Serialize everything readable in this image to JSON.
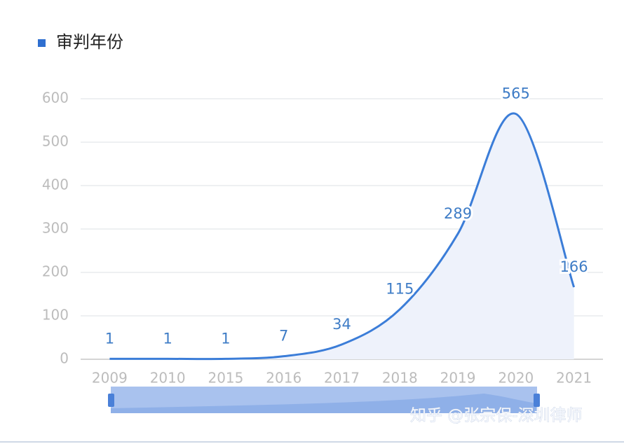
{
  "chart_data": {
    "type": "line",
    "title": "审判年份",
    "categories": [
      "2009",
      "2010",
      "2015",
      "2016",
      "2017",
      "2018",
      "2019",
      "2020",
      "2021"
    ],
    "values": [
      1,
      1,
      1,
      7,
      34,
      115,
      289,
      565,
      166
    ],
    "color": "#3b7dd8",
    "ylim": [
      0,
      600
    ],
    "yticks": [
      0,
      100,
      200,
      300,
      400,
      500,
      600
    ],
    "grid": true,
    "watermark": "知乎 @张宗保-深圳律师"
  }
}
